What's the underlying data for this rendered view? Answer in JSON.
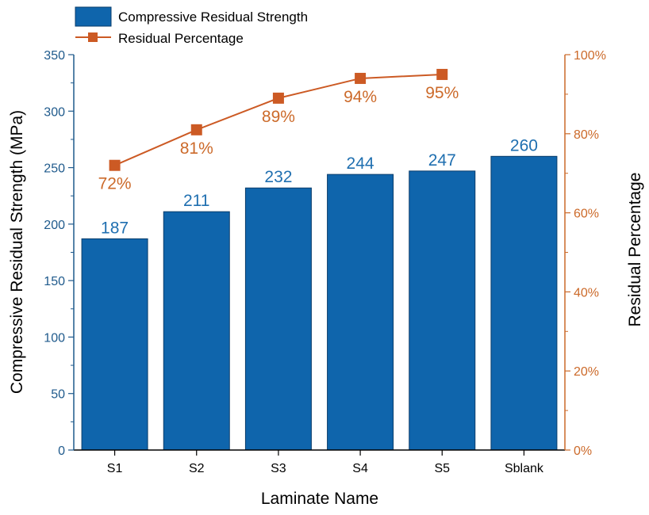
{
  "chart_data": {
    "type": "bar",
    "categories": [
      "S1",
      "S2",
      "S3",
      "S4",
      "S5",
      "Sblank"
    ],
    "series": [
      {
        "name": "Compressive Residual Strength",
        "type": "bar",
        "axis": "left",
        "values": [
          187,
          211,
          232,
          244,
          247,
          260
        ],
        "labels": [
          "187",
          "211",
          "232",
          "244",
          "247",
          "260"
        ]
      },
      {
        "name": "Residual Percentage",
        "type": "line",
        "axis": "right",
        "values": [
          72,
          81,
          89,
          94,
          95,
          null
        ],
        "labels": [
          "72%",
          "81%",
          "89%",
          "94%",
          "95%",
          ""
        ]
      }
    ],
    "xlabel": "Laminate Name",
    "ylabel": "Compressive Residual Strength (MPa)",
    "y2label": "Residual Percentage",
    "ylim": [
      0,
      350
    ],
    "y_ticks": [
      0,
      50,
      100,
      150,
      200,
      250,
      300,
      350
    ],
    "y2lim": [
      0,
      100
    ],
    "y2_ticks": [
      "0%",
      "20%",
      "40%",
      "60%",
      "80%",
      "100%"
    ],
    "legend_position": "top-left",
    "grid": false,
    "colors": {
      "bar_fill": "#0f65ac",
      "bar_stroke": "#0a3d6b",
      "left_axis": "#1f5a8c",
      "right_axis": "#cc6a2a",
      "line": "#cc5a24",
      "bar_label": "#1f6fb0",
      "line_label": "#cc6a2a"
    }
  }
}
